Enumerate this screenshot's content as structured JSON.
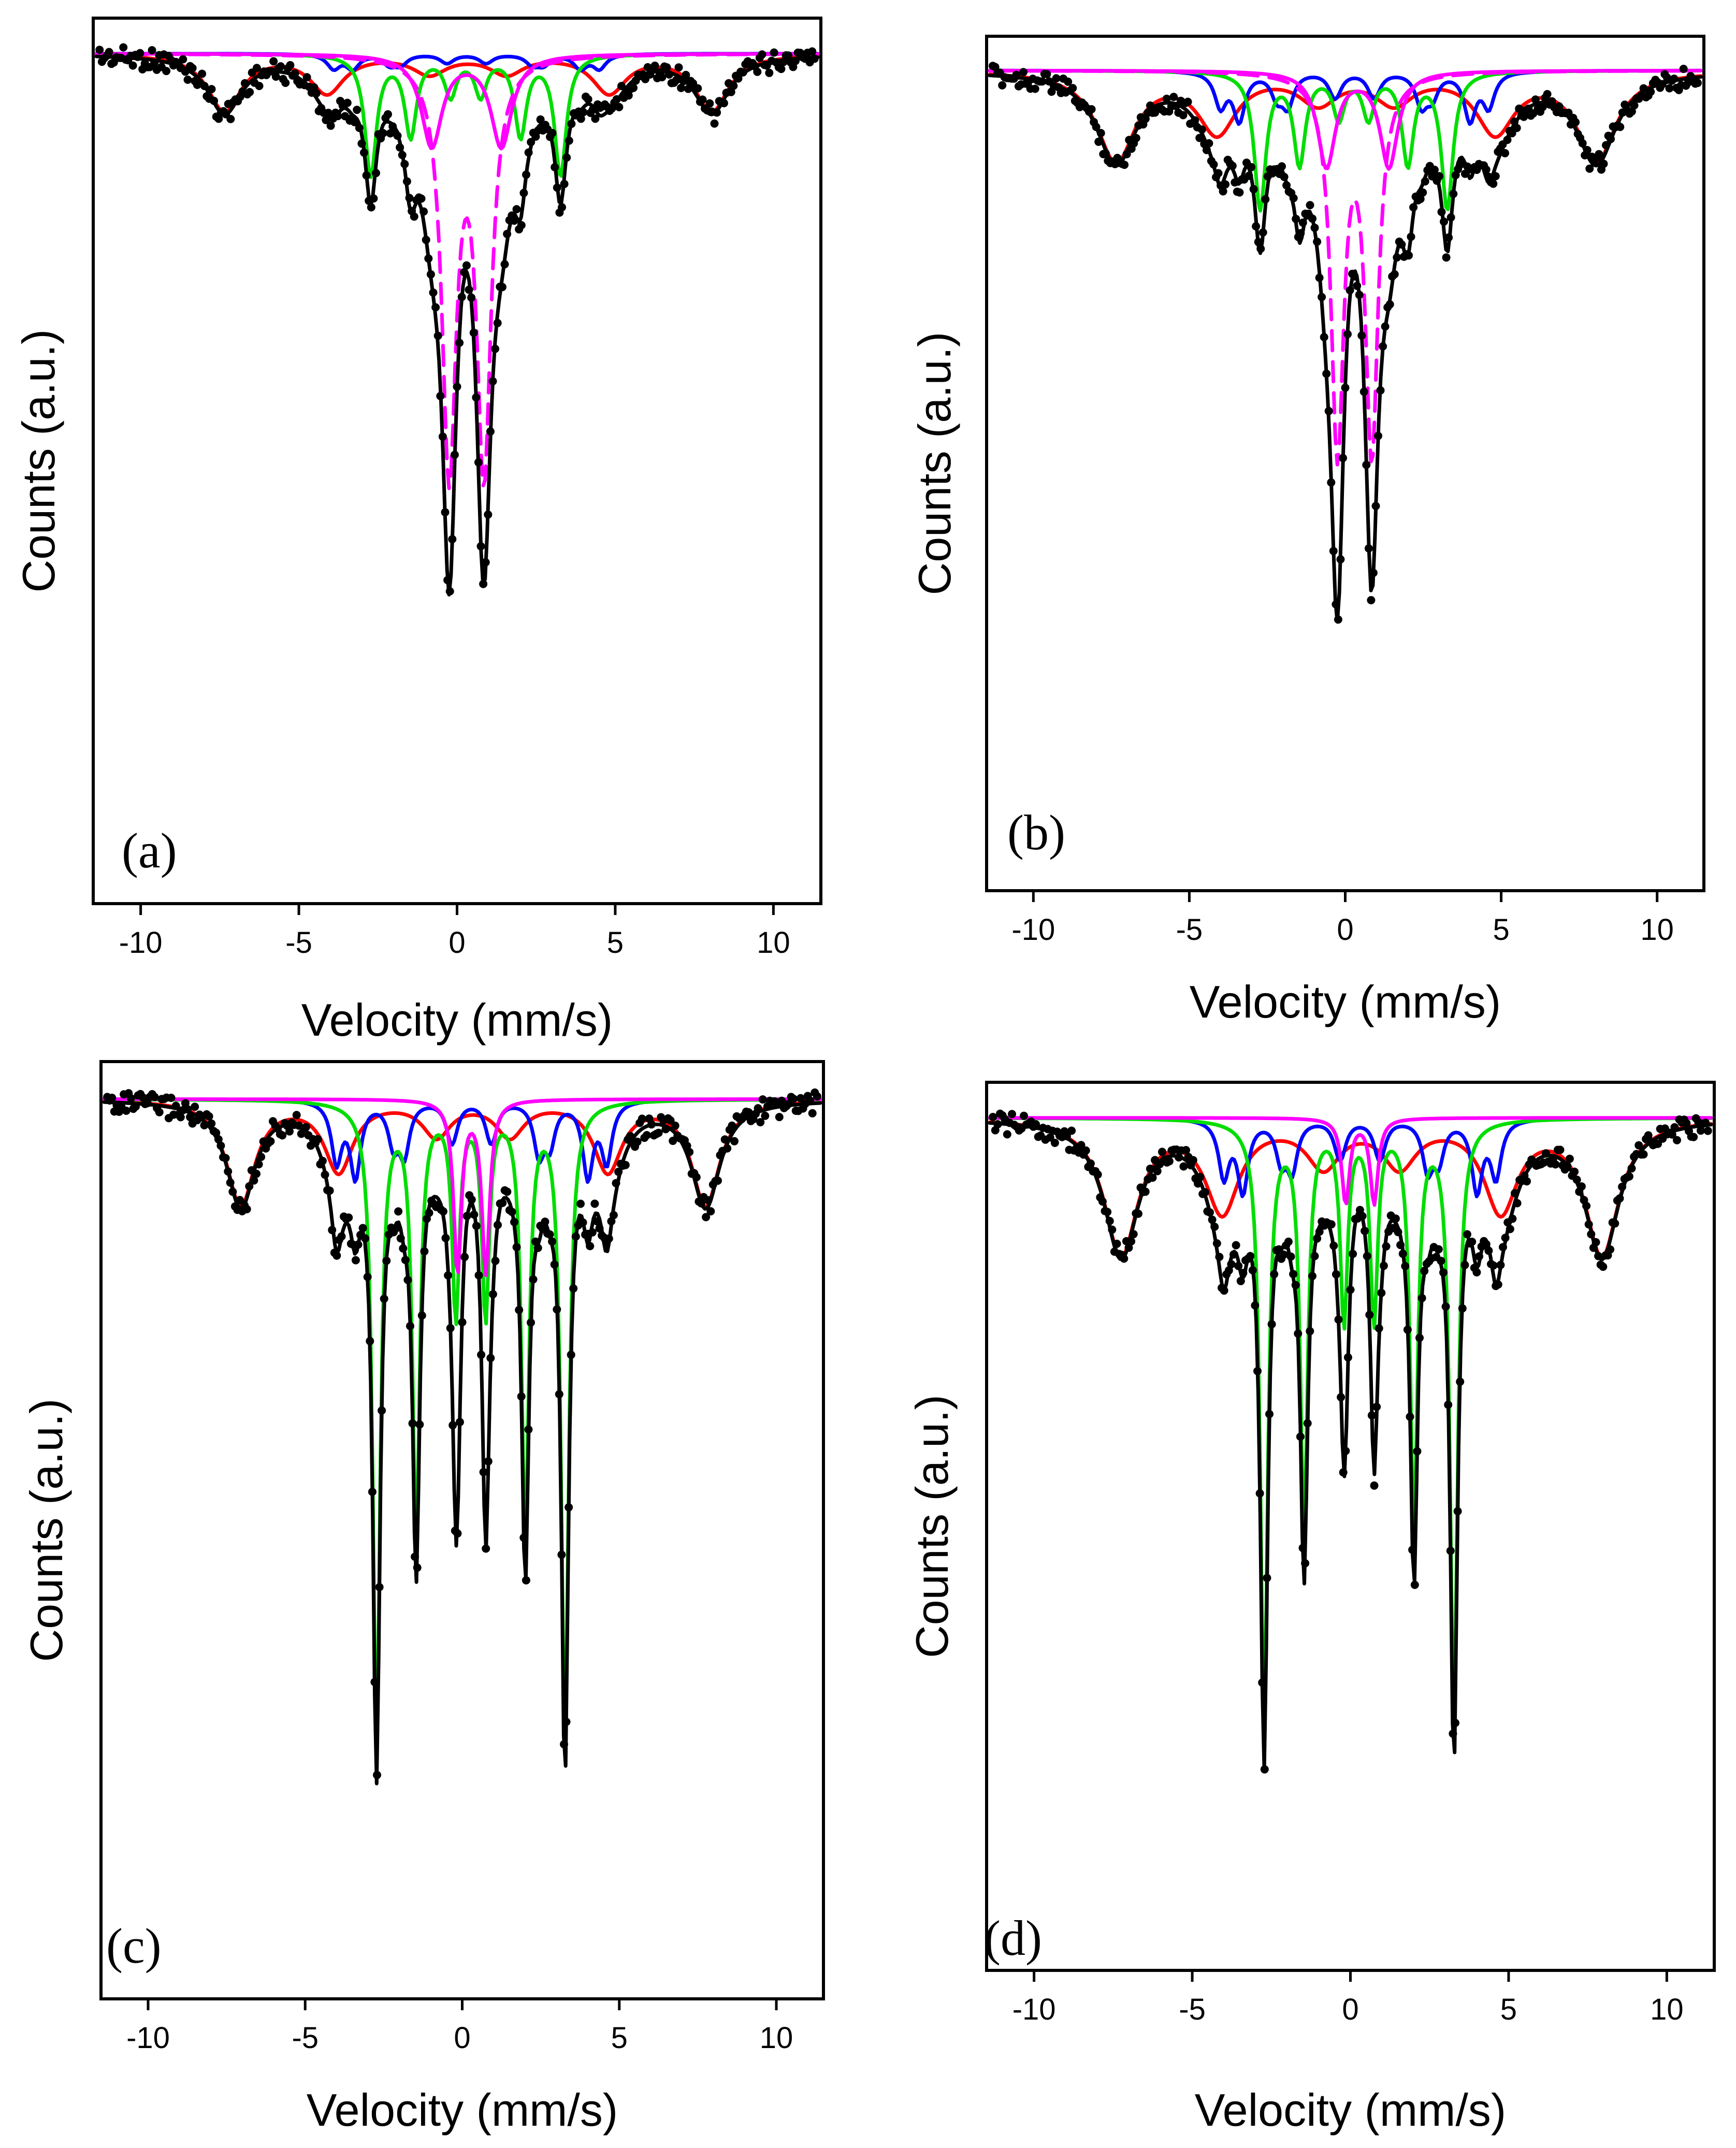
{
  "colors": {
    "data_points": "#000000",
    "total_fit": "#000000",
    "sextet_red": "#ff0000",
    "sextet_blue": "#0000ff",
    "sextet_green": "#00dd00",
    "doublet_magenta": "#ff00ff"
  },
  "chart_data": [
    {
      "type": "scatter",
      "panel_label": "(a)",
      "xlabel": "Velocity (mm/s)",
      "ylabel": "Counts (a.u.)",
      "xlim": [
        -11.5,
        11.5
      ],
      "xticks": [
        -10,
        -5,
        0,
        5,
        10
      ],
      "xtick_labels": [
        "-10",
        "-5",
        "0",
        "5",
        "10"
      ],
      "yticks_shown": false,
      "series": [
        {
          "role": "measured",
          "style": "points",
          "color": "#000000"
        },
        {
          "role": "total fit",
          "style": "solid",
          "color": "#000000"
        },
        {
          "role": "sextet",
          "style": "solid",
          "color": "#ff0000",
          "components": [
            {
              "center": 0.35,
              "split": 15.4,
              "depth": 0.08,
              "width": 1.3
            }
          ]
        },
        {
          "role": "sextet",
          "style": "solid",
          "color": "#0000ff",
          "components": [
            {
              "center": 0.3,
              "split": 7.2,
              "depth": 0.02,
              "width": 0.5
            },
            {
              "center": 0.3,
              "split": 8.4,
              "depth": 0.02,
              "width": 0.5
            }
          ]
        },
        {
          "role": "sextet",
          "style": "solid",
          "color": "#00dd00",
          "components": [
            {
              "center": 0.27,
              "split": 6.0,
              "depth": 0.17,
              "width": 0.45
            }
          ]
        },
        {
          "role": "doublet",
          "style": "solid",
          "color": "#ff00ff",
          "components": [
            {
              "center": 0.3,
              "split": 2.2,
              "depth": 0.13,
              "width": 0.8
            }
          ]
        },
        {
          "role": "doublet",
          "style": "dashed",
          "color": "#ff00ff",
          "components": [
            {
              "center": 0.3,
              "split": 1.1,
              "depth": 0.58,
              "width": 0.55
            }
          ]
        }
      ]
    },
    {
      "type": "scatter",
      "panel_label": "(b)",
      "xlabel": "Velocity (mm/s)",
      "ylabel": "Counts (a.u.)",
      "xlim": [
        -11.5,
        11.5
      ],
      "xticks": [
        -10,
        -5,
        0,
        5,
        10
      ],
      "xtick_labels": [
        "-10",
        "-5",
        "0",
        "5",
        "10"
      ],
      "yticks_shown": false,
      "series": [
        {
          "role": "measured",
          "style": "points",
          "color": "#000000"
        },
        {
          "role": "total fit",
          "style": "solid",
          "color": "#000000"
        },
        {
          "role": "sextet",
          "style": "solid",
          "color": "#ff0000",
          "components": [
            {
              "center": 0.35,
              "split": 15.4,
              "depth": 0.13,
              "width": 1.5
            }
          ]
        },
        {
          "role": "sextet",
          "style": "solid",
          "color": "#0000ff",
          "components": [
            {
              "center": 0.3,
              "split": 7.4,
              "depth": 0.07,
              "width": 0.45
            },
            {
              "center": 0.3,
              "split": 8.6,
              "depth": 0.05,
              "width": 0.45
            }
          ]
        },
        {
          "role": "sextet",
          "style": "solid",
          "color": "#00dd00",
          "components": [
            {
              "center": 0.27,
              "split": 6.0,
              "depth": 0.2,
              "width": 0.45
            }
          ]
        },
        {
          "role": "doublet",
          "style": "solid",
          "color": "#ff00ff",
          "components": [
            {
              "center": 0.4,
              "split": 2.0,
              "depth": 0.14,
              "width": 0.7
            }
          ]
        },
        {
          "role": "doublet",
          "style": "dashed",
          "color": "#ff00ff",
          "components": [
            {
              "center": 0.3,
              "split": 1.1,
              "depth": 0.55,
              "width": 0.5
            }
          ]
        }
      ]
    },
    {
      "type": "scatter",
      "panel_label": "(c)",
      "xlabel": "Velocity (mm/s)",
      "ylabel": "Counts (a.u.)",
      "xlim": [
        -11.5,
        11.5
      ],
      "xticks": [
        -10,
        -5,
        0,
        5,
        10
      ],
      "xtick_labels": [
        "-10",
        "-5",
        "0",
        "5",
        "10"
      ],
      "yticks_shown": false,
      "series": [
        {
          "role": "measured",
          "style": "points",
          "color": "#000000"
        },
        {
          "role": "total fit",
          "style": "solid",
          "color": "#000000"
        },
        {
          "role": "sextet",
          "style": "solid",
          "color": "#ff0000",
          "components": [
            {
              "center": 0.35,
              "split": 14.8,
              "depth": 0.14,
              "width": 1.1
            }
          ]
        },
        {
          "role": "sextet",
          "style": "solid",
          "color": "#0000ff",
          "components": [
            {
              "center": 0.3,
              "split": 7.4,
              "depth": 0.1,
              "width": 0.4
            },
            {
              "center": 0.3,
              "split": 8.6,
              "depth": 0.08,
              "width": 0.4
            }
          ]
        },
        {
          "role": "sextet",
          "style": "solid",
          "color": "#00dd00",
          "components": [
            {
              "center": 0.27,
              "split": 6.0,
              "depth": 0.86,
              "width": 0.28
            }
          ]
        },
        {
          "role": "doublet",
          "style": "solid",
          "color": "#ff00ff",
          "components": [
            {
              "center": 0.3,
              "split": 0.9,
              "depth": 0.23,
              "width": 0.3
            }
          ]
        }
      ]
    },
    {
      "type": "scatter",
      "panel_label": "(d)",
      "xlabel": "Velocity (mm/s)",
      "ylabel": "Counts (a.u.)",
      "xlim": [
        -11.5,
        11.5
      ],
      "xticks": [
        -10,
        -5,
        0,
        5,
        10
      ],
      "xtick_labels": [
        "-10",
        "-5",
        "0",
        "5",
        "10"
      ],
      "yticks_shown": false,
      "series": [
        {
          "role": "measured",
          "style": "points",
          "color": "#000000"
        },
        {
          "role": "total fit",
          "style": "solid",
          "color": "#000000"
        },
        {
          "role": "sextet",
          "style": "solid",
          "color": "#ff0000",
          "components": [
            {
              "center": 0.35,
              "split": 15.2,
              "depth": 0.19,
              "width": 1.3
            }
          ]
        },
        {
          "role": "sextet",
          "style": "solid",
          "color": "#0000ff",
          "components": [
            {
              "center": 0.3,
              "split": 7.4,
              "depth": 0.1,
              "width": 0.4
            },
            {
              "center": 0.3,
              "split": 8.6,
              "depth": 0.08,
              "width": 0.4
            }
          ]
        },
        {
          "role": "sextet",
          "style": "solid",
          "color": "#00dd00",
          "components": [
            {
              "center": 0.27,
              "split": 6.0,
              "depth": 0.85,
              "width": 0.28
            }
          ]
        },
        {
          "role": "doublet",
          "style": "solid",
          "color": "#ff00ff",
          "components": [
            {
              "center": 0.3,
              "split": 0.9,
              "depth": 0.12,
              "width": 0.3
            }
          ]
        }
      ]
    }
  ]
}
